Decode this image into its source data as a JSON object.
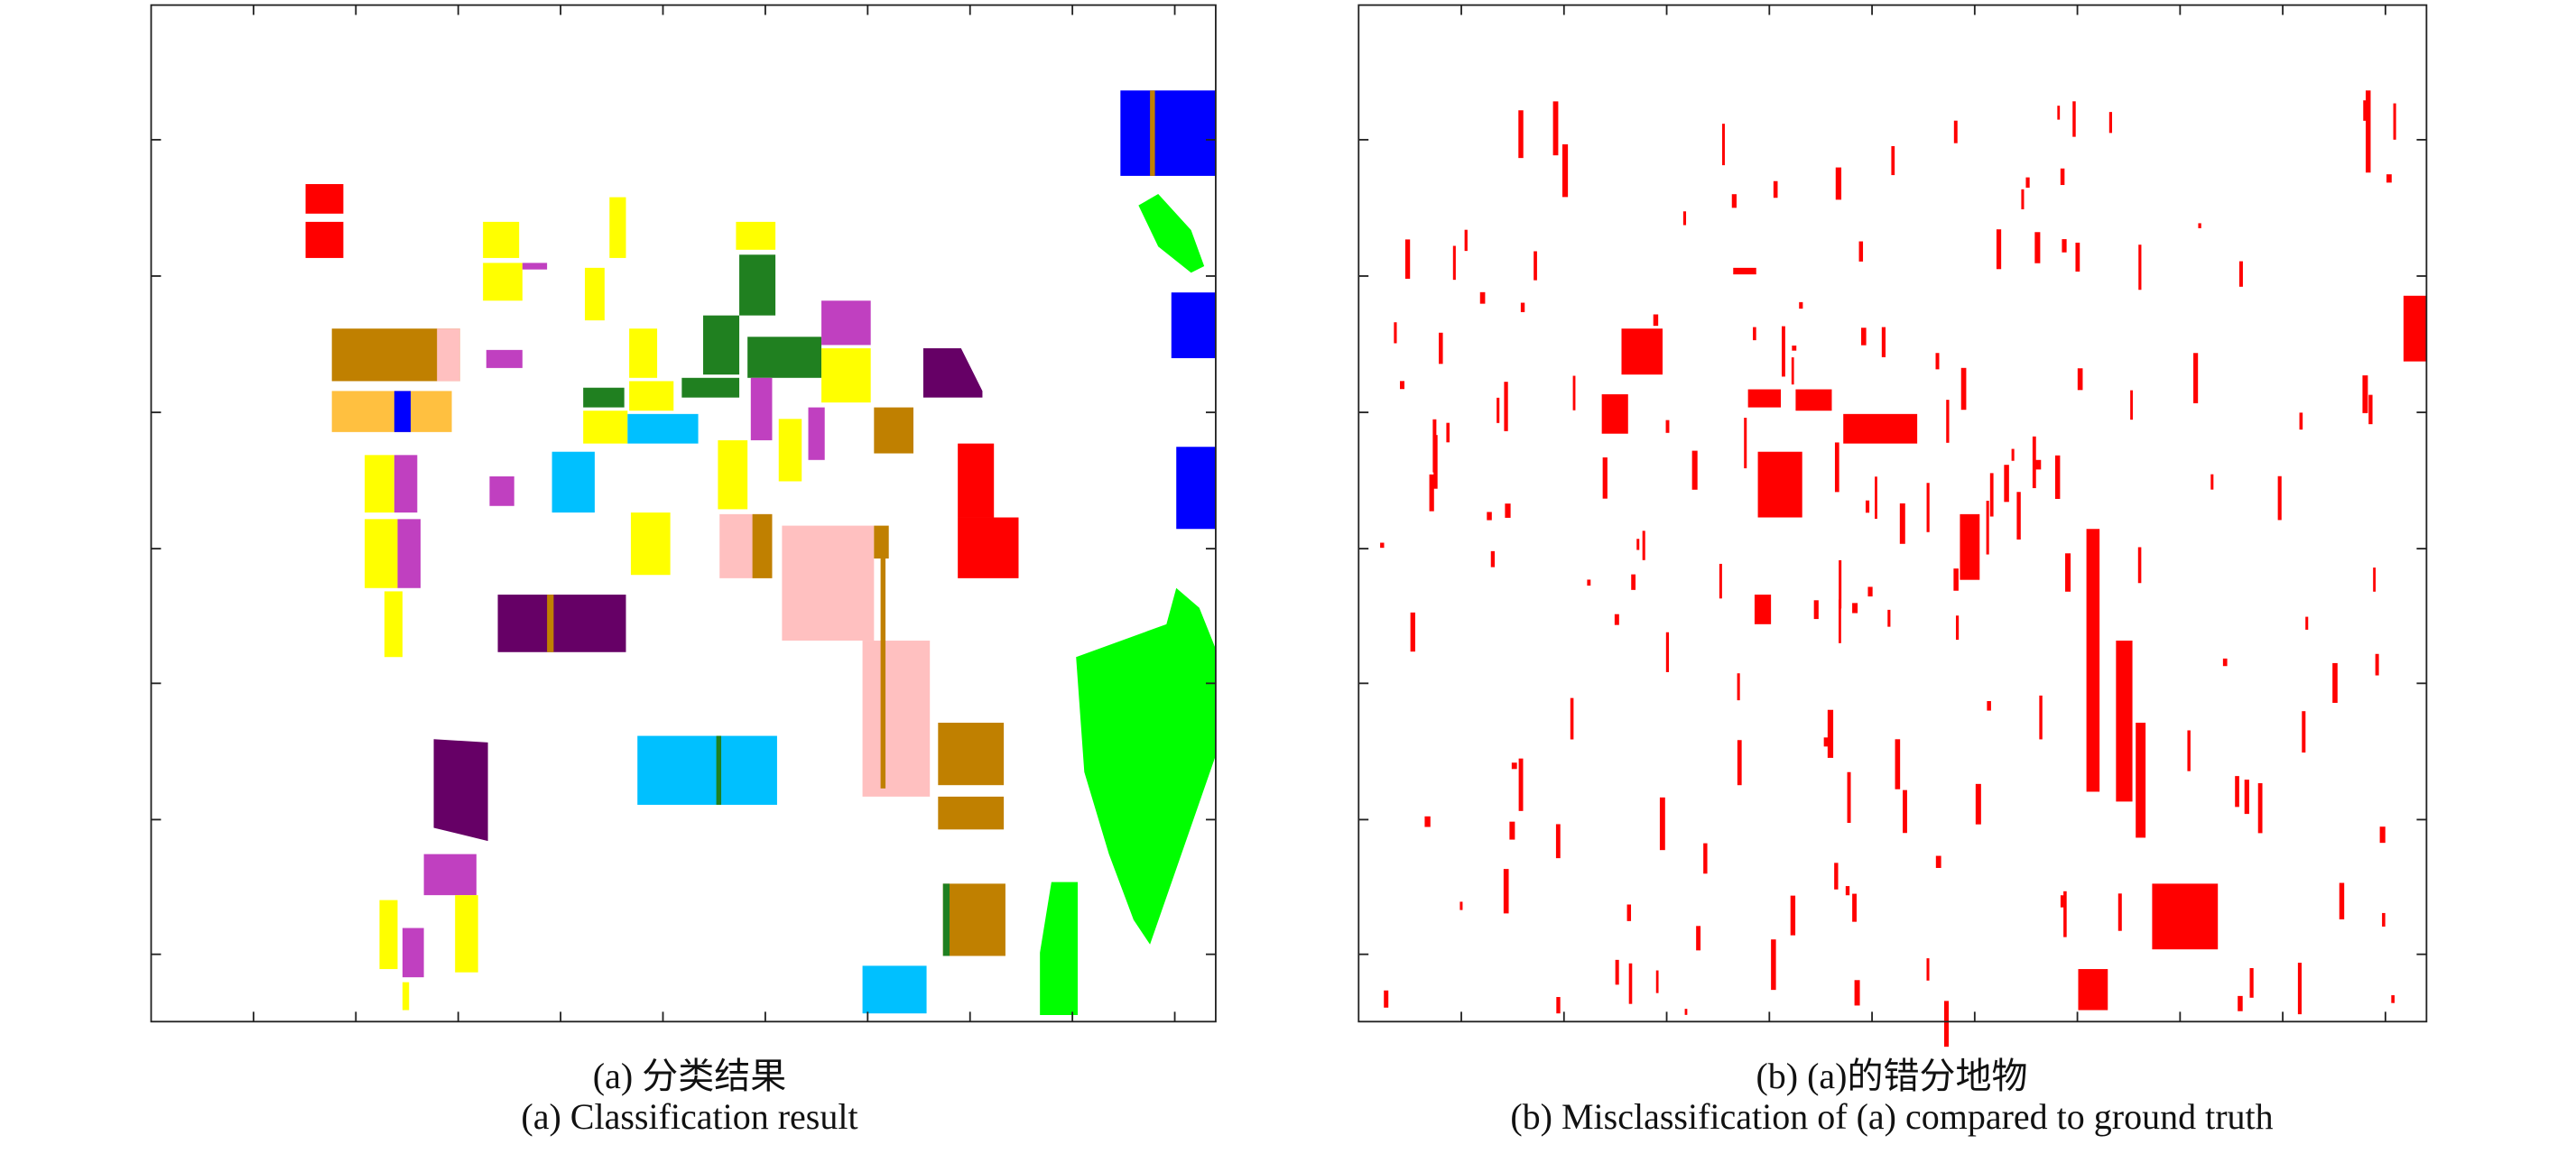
{
  "panels": [
    {
      "id": "a",
      "caption_cn": "(a) 分类结果",
      "caption_en": "(a) Classification result"
    },
    {
      "id": "b",
      "caption_cn": "(b) (a)的错分地物",
      "caption_en": "(b) Misclassification of (a) compared to ground truth"
    }
  ],
  "colors": {
    "red": "#ff0000",
    "yellow": "#ffff00",
    "brown": "#c08000",
    "pink": "#ffc0c0",
    "orange": "#ffc040",
    "blue": "#0000ff",
    "dark_green": "#208020",
    "purple": "#c040c0",
    "dark_purple": "#660066",
    "cyan": "#00c0ff",
    "green": "#00ff00",
    "error": "#ff0000"
  }
}
